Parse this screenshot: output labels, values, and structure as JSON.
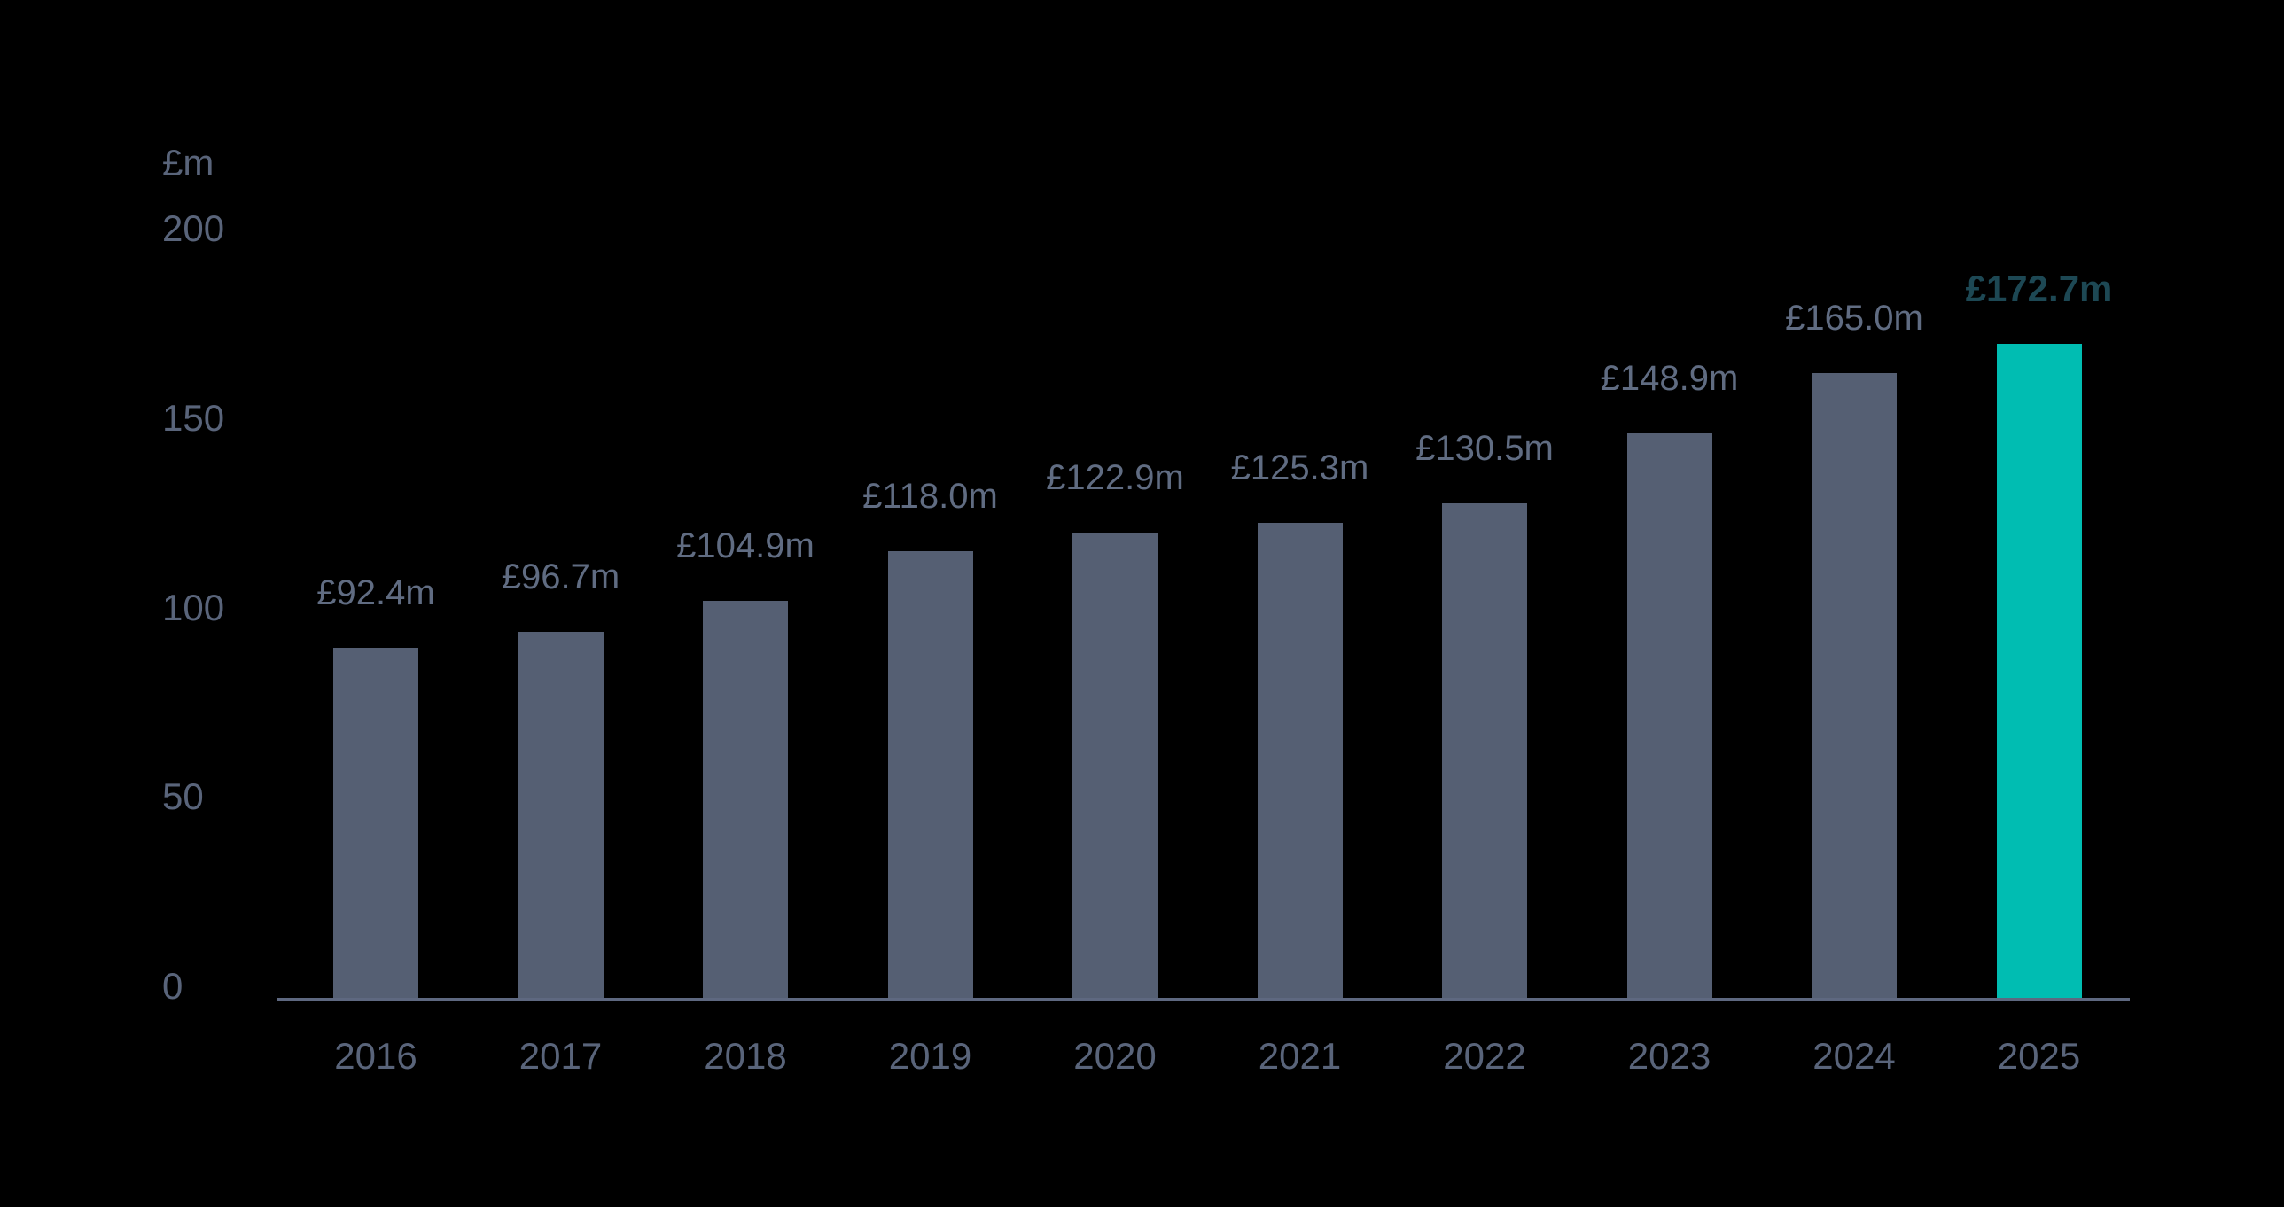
{
  "chart_data": {
    "type": "bar",
    "title": "",
    "unit_label": "£m",
    "categories": [
      "2016",
      "2017",
      "2018",
      "2019",
      "2020",
      "2021",
      "2022",
      "2023",
      "2024",
      "2025"
    ],
    "values": [
      92.4,
      96.7,
      104.9,
      118.0,
      122.9,
      125.3,
      130.5,
      148.9,
      165.0,
      172.7
    ],
    "value_labels": [
      "£92.4m",
      "£96.7m",
      "£104.9m",
      "£118.0m",
      "£122.9m",
      "£125.3m",
      "£130.5m",
      "£148.9m",
      "£165.0m",
      "£172.7m"
    ],
    "yticks": [
      0,
      50,
      100,
      150,
      200
    ],
    "ylim": [
      0,
      200
    ],
    "grid": false,
    "legend": "none",
    "highlight_index": 9,
    "colors": {
      "background": "#000000",
      "bar": "#555F73",
      "bar_highlight": "#00BDB2",
      "tick_label": "#59647A",
      "value_label": "#606C82",
      "value_label_highlight": "#1D4854",
      "axis_line": "#5E6880"
    }
  }
}
